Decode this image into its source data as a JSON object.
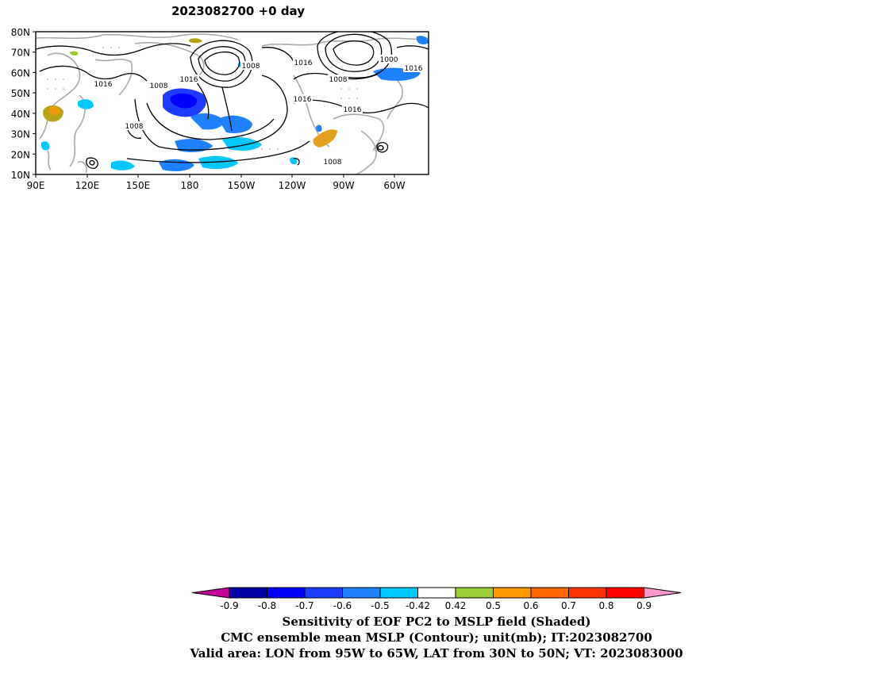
{
  "title": "2023082700  +0 day",
  "map": {
    "lat_labels": [
      "80N",
      "70N",
      "60N",
      "50N",
      "40N",
      "30N",
      "20N",
      "10N"
    ],
    "lon_labels": [
      "90E",
      "120E",
      "150E",
      "180",
      "150W",
      "120W",
      "90W",
      "60W"
    ],
    "contour_labels": {
      "c1": "1016",
      "c2": "1008",
      "c3": "1016",
      "c4": "1008",
      "c5": "1016",
      "c6": "1000",
      "c7": "1016",
      "c8": "1008",
      "c9": "1016",
      "c10": "1016",
      "c11": "1008",
      "c12": "1008"
    }
  },
  "colorbar": {
    "colors": [
      "#c8009c",
      "#0000a6",
      "#0000ff",
      "#1e3cff",
      "#1e82ff",
      "#00c8ff",
      "#ffffff",
      "#9acd32",
      "#ff9900",
      "#ff6600",
      "#ff3300",
      "#ff0000",
      "#ff99cc"
    ],
    "tick_labels": [
      "-0.9",
      "-0.8",
      "-0.7",
      "-0.6",
      "-0.5",
      "-0.42",
      "0.42",
      "0.5",
      "0.6",
      "0.7",
      "0.8",
      "0.9"
    ]
  },
  "caption": {
    "line1": "Sensitivity of EOF PC2 to MSLP field (Shaded)",
    "line2": "CMC ensemble mean MSLP (Contour); unit(mb); IT:2023082700",
    "line3": "Valid area: LON from 95W to 65W, LAT from 30N to 50N; VT: 2023083000"
  }
}
